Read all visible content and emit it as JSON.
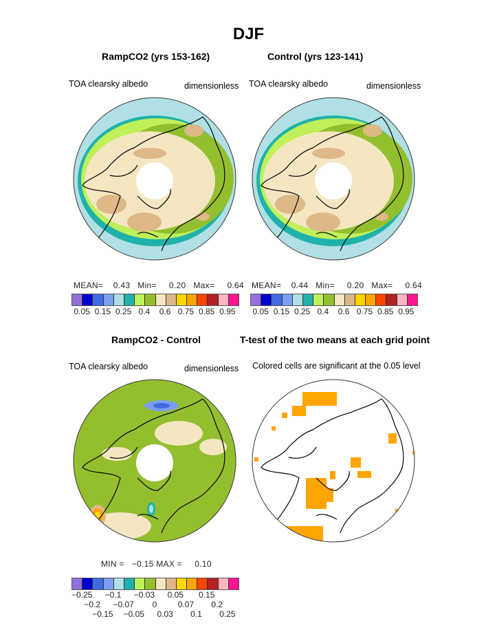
{
  "figure_title": "DJF",
  "panels": [
    {
      "title": "RampCO2 (yrs 153-162)",
      "variable": "TOA clearsky albedo",
      "units": "dimensionless",
      "stats": {
        "mean_label": "MEAN=",
        "mean": "0.43",
        "min_label": "Min=",
        "min": "0.20",
        "max_label": "Max=",
        "max": "0.64"
      }
    },
    {
      "title": "Control (yrs 123-141)",
      "variable": "TOA clearsky albedo",
      "units": "dimensionless",
      "stats": {
        "mean_label": "MEAN=",
        "mean": "0.44",
        "min_label": "Min=",
        "min": "0.20",
        "max_label": "Max=",
        "max": "0.64"
      }
    },
    {
      "title": "RampCO2 - Control",
      "variable": "TOA clearsky albedo",
      "units": "dimensionless",
      "stats": {
        "min_label": "MIN =",
        "min": "−0.15",
        "max_label": "MAX =",
        "max": "0.10"
      }
    },
    {
      "title": "T-test of the two means at each grid point",
      "variable": "Colored cells are significant at the 0.05 level"
    }
  ],
  "colorbar": {
    "colors": [
      "#9370db",
      "#0000cd",
      "#4169e1",
      "#7b9ff0",
      "#b0e0e6",
      "#20b2aa",
      "#bff05a",
      "#93bf2f",
      "#f5e6c2",
      "#deb887",
      "#ffd700",
      "#ffa500",
      "#ff4500",
      "#b22222",
      "#ffb6c1",
      "#ff1493"
    ],
    "abs_labels": [
      "0.05",
      "0.15",
      "0.25",
      "0.4",
      "0.6",
      "0.75",
      "0.85",
      "0.95"
    ],
    "diff_labels": [
      "−0.25",
      "−0.2",
      "−0.15",
      "−0.1",
      "−0.07",
      "−0.05",
      "−0.03",
      "0",
      "0.03",
      "0.05",
      "0.07",
      "0.1",
      "0.15",
      "0.2",
      "0.25"
    ]
  },
  "significance_color": "#ffa500"
}
